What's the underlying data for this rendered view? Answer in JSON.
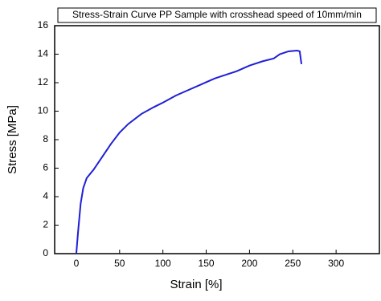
{
  "chart_data": {
    "type": "line",
    "title": "Stress-Strain Curve PP Sample with crosshead speed of 10mm/min",
    "x_label": "Strain [%]",
    "y_label": "Stress [MPa]",
    "xlim": [
      -25,
      350
    ],
    "ylim": [
      0,
      16
    ],
    "xticks": [
      0,
      50,
      100,
      150,
      200,
      250,
      300
    ],
    "yticks": [
      0,
      2,
      4,
      6,
      8,
      10,
      12,
      14,
      16
    ],
    "series": [
      {
        "name": "PP Sample",
        "color": "#1f1fd6",
        "x": [
          0,
          2,
          5,
          8,
          12,
          20,
          30,
          40,
          50,
          60,
          75,
          90,
          100,
          115,
          130,
          145,
          160,
          175,
          185,
          200,
          215,
          228,
          235,
          245,
          255,
          258,
          260
        ],
        "values": [
          0,
          1.5,
          3.5,
          4.6,
          5.3,
          5.9,
          6.8,
          7.7,
          8.5,
          9.1,
          9.8,
          10.3,
          10.6,
          11.1,
          11.5,
          11.9,
          12.3,
          12.6,
          12.8,
          13.2,
          13.5,
          13.7,
          14.0,
          14.2,
          14.25,
          14.2,
          13.3
        ]
      }
    ]
  }
}
